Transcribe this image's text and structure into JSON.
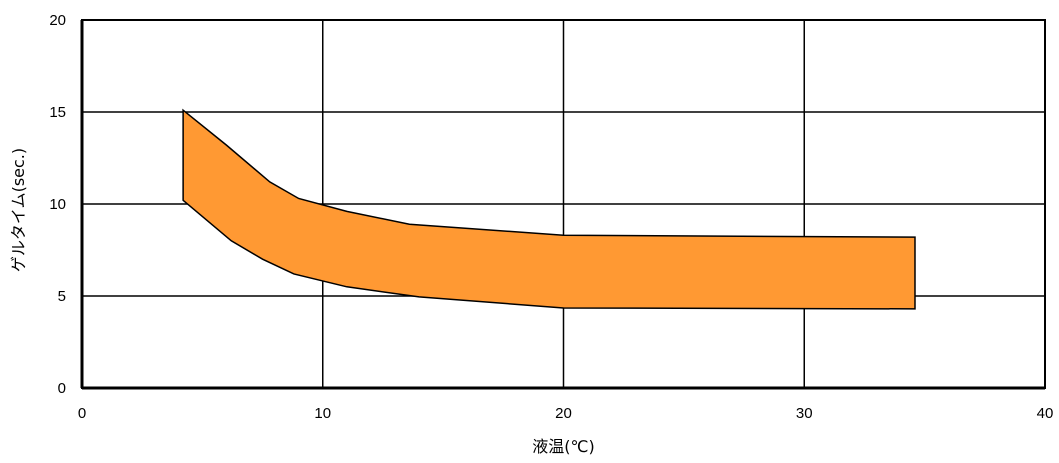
{
  "chart_data": {
    "type": "area",
    "xlabel": "液温(℃)",
    "ylabel": "ゲルタイム(sec.)",
    "xlim": [
      0,
      40
    ],
    "ylim": [
      0,
      20
    ],
    "xticks": [
      0,
      10,
      20,
      30,
      40
    ],
    "yticks": [
      0,
      5,
      10,
      15,
      20
    ],
    "x_tick_labels": [
      "0",
      "10",
      "20",
      "30",
      "40"
    ],
    "y_tick_labels": [
      "0",
      "5",
      "10",
      "15",
      "20"
    ],
    "grid": true,
    "legend": "none",
    "band": {
      "upper": [
        {
          "x": 4.2,
          "y": 15.1
        },
        {
          "x": 6.0,
          "y": 13.2
        },
        {
          "x": 7.8,
          "y": 11.2
        },
        {
          "x": 9.0,
          "y": 10.3
        },
        {
          "x": 11.0,
          "y": 9.6
        },
        {
          "x": 13.6,
          "y": 8.9
        },
        {
          "x": 20.0,
          "y": 8.3
        },
        {
          "x": 34.6,
          "y": 8.2
        }
      ],
      "lower": [
        {
          "x": 4.2,
          "y": 10.2
        },
        {
          "x": 6.2,
          "y": 8.0
        },
        {
          "x": 7.5,
          "y": 7.0
        },
        {
          "x": 8.8,
          "y": 6.2
        },
        {
          "x": 11.0,
          "y": 5.5
        },
        {
          "x": 14.0,
          "y": 4.95
        },
        {
          "x": 20.0,
          "y": 4.35
        },
        {
          "x": 34.6,
          "y": 4.3
        }
      ],
      "fill_color": "#FF9933",
      "stroke_color": "#000000"
    }
  }
}
